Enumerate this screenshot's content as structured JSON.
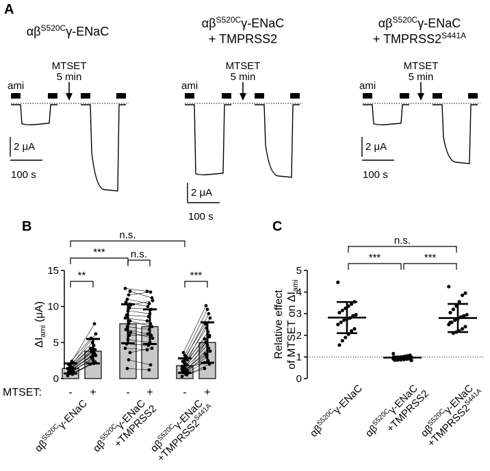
{
  "panels": {
    "A": "A",
    "B": "B",
    "C": "C"
  },
  "panelA": {
    "groups": [
      {
        "prefix": "αβ",
        "sup": "S520C",
        "suffix": "γ-ENaC",
        "line2": ""
      },
      {
        "prefix": "αβ",
        "sup": "S520C",
        "suffix": "γ-ENaC",
        "line2": "+ TMPRSS2"
      },
      {
        "prefix": "αβ",
        "sup": "S520C",
        "suffix": "γ-ENaC",
        "line2": "+ TMPRSS2",
        "line2_sup": "S441A"
      }
    ],
    "ami_label": "ami",
    "mtset_label": "MTSET",
    "mtset_duration": "5 min",
    "scale_current": "2 μA",
    "scale_time": "100 s"
  },
  "chart_data": [
    {
      "type": "bar",
      "panel": "B",
      "ylabel": "ΔI",
      "ylabel_sub": "ami",
      "ylabel_unit": " (μA)",
      "ylim": [
        0,
        15
      ],
      "yticks": [
        "0",
        "5",
        "10",
        "15"
      ],
      "row_label": "MTSET:",
      "mtset_states": [
        "-",
        "+",
        "-",
        "+",
        "-",
        "+"
      ],
      "categories": [
        {
          "prefix": "αβ",
          "sup": "S520C",
          "suffix": "γ-ENaC",
          "line2": ""
        },
        {
          "prefix": "αβ",
          "sup": "S520C",
          "suffix": "γ-ENaC",
          "line2": "+TMPRSS2"
        },
        {
          "prefix": "αβ",
          "sup": "S520C",
          "suffix": "γ-ENaC",
          "line2": "+TMPRSS2",
          "line2_sup": "S441A"
        }
      ],
      "bars": [
        {
          "mean": 1.4,
          "sd": 0.7
        },
        {
          "mean": 3.8,
          "sd": 1.7
        },
        {
          "mean": 7.6,
          "sd": 2.7
        },
        {
          "mean": 7.2,
          "sd": 2.4
        },
        {
          "mean": 1.8,
          "sd": 1.0
        },
        {
          "mean": 5.0,
          "sd": 2.8
        }
      ],
      "pairs": [
        [
          [
            0.4,
            2.0
          ],
          [
            0.6,
            2.3
          ],
          [
            0.7,
            2.1
          ],
          [
            0.8,
            2.8
          ],
          [
            0.9,
            3.0
          ],
          [
            1.0,
            3.2
          ],
          [
            1.1,
            3.5
          ],
          [
            1.2,
            3.3
          ],
          [
            1.3,
            3.9
          ],
          [
            1.4,
            4.2
          ],
          [
            1.5,
            4.0
          ],
          [
            1.6,
            4.6
          ],
          [
            1.8,
            5.0
          ],
          [
            2.0,
            5.6
          ],
          [
            2.2,
            6.2
          ],
          [
            2.4,
            7.6
          ],
          [
            1.0,
            2.6
          ],
          [
            1.2,
            3.7
          ]
        ],
        [
          [
            12.5,
            12.1
          ],
          [
            12.1,
            11.2
          ],
          [
            11.6,
            12.0
          ],
          [
            11.0,
            10.4
          ],
          [
            10.6,
            10.0
          ],
          [
            10.2,
            10.8
          ],
          [
            9.8,
            9.6
          ],
          [
            9.4,
            9.0
          ],
          [
            8.8,
            8.6
          ],
          [
            8.4,
            8.0
          ],
          [
            8.0,
            7.2
          ],
          [
            7.6,
            7.6
          ],
          [
            7.2,
            6.8
          ],
          [
            6.8,
            6.2
          ],
          [
            6.4,
            5.6
          ],
          [
            6.0,
            6.0
          ],
          [
            5.4,
            5.0
          ],
          [
            4.8,
            4.6
          ],
          [
            4.2,
            4.0
          ],
          [
            3.6,
            4.2
          ],
          [
            2.6,
            1.9
          ],
          [
            1.4,
            1.2
          ]
        ],
        [
          [
            0.3,
            1.4
          ],
          [
            0.5,
            2.0
          ],
          [
            0.7,
            2.5
          ],
          [
            0.8,
            3.0
          ],
          [
            1.0,
            3.4
          ],
          [
            1.1,
            3.8
          ],
          [
            1.2,
            4.2
          ],
          [
            1.4,
            4.6
          ],
          [
            1.5,
            5.0
          ],
          [
            1.7,
            5.5
          ],
          [
            1.9,
            6.0
          ],
          [
            2.0,
            6.5
          ],
          [
            2.2,
            7.0
          ],
          [
            2.4,
            7.6
          ],
          [
            2.6,
            8.4
          ],
          [
            3.0,
            9.0
          ],
          [
            3.2,
            9.6
          ],
          [
            3.6,
            10.1
          ],
          [
            1.3,
            2.2
          ],
          [
            0.9,
            5.8
          ]
        ]
      ],
      "comparisons": [
        {
          "label": "**"
        },
        {
          "label": "n.s."
        },
        {
          "label": "***"
        },
        {
          "label": "***"
        },
        {
          "label": "n.s."
        }
      ]
    },
    {
      "type": "scatter",
      "panel": "C",
      "ylabel_line1": "Relative effect",
      "ylabel_line2": "of MTSET on ΔI",
      "ylabel_sub": "ami",
      "ylim": [
        0,
        5
      ],
      "yticks": [
        "0",
        "1",
        "2",
        "3",
        "4",
        "5"
      ],
      "reference_line": 1,
      "categories": [
        {
          "prefix": "αβ",
          "sup": "S520C",
          "suffix": "γ-ENaC",
          "line2": ""
        },
        {
          "prefix": "αβ",
          "sup": "S520C",
          "suffix": "γ-ENaC",
          "line2": "+TMPRSS2"
        },
        {
          "prefix": "αβ",
          "sup": "S520C",
          "suffix": "γ-ENaC",
          "line2": "+TMPRSS2",
          "line2_sup": "S441A"
        }
      ],
      "series": [
        {
          "mean": 2.82,
          "sd": 0.72,
          "points": [
            4.45,
            3.55,
            3.45,
            3.35,
            3.25,
            3.15,
            3.05,
            2.95,
            2.9,
            2.8,
            2.75,
            2.7,
            2.6,
            2.5,
            2.3,
            2.2,
            2.05,
            1.9,
            1.75,
            1.55
          ]
        },
        {
          "mean": 0.97,
          "sd": 0.05,
          "points": [
            1.15,
            1.08,
            1.05,
            1.02,
            1.0,
            0.99,
            0.98,
            0.97,
            0.96,
            0.95,
            0.94,
            0.93,
            0.92,
            0.91,
            0.9,
            0.9,
            0.88,
            0.87,
            0.86,
            0.85,
            0.84,
            0.96
          ]
        },
        {
          "mean": 2.8,
          "sd": 0.65,
          "points": [
            4.25,
            3.95,
            3.85,
            3.55,
            3.35,
            3.2,
            3.05,
            2.95,
            2.9,
            2.85,
            2.75,
            2.7,
            2.6,
            2.5,
            2.4,
            2.3,
            2.2,
            2.15,
            2.1,
            2.6
          ]
        }
      ],
      "comparisons": [
        {
          "label": "n.s."
        },
        {
          "label": "***"
        },
        {
          "label": "***"
        }
      ]
    }
  ]
}
